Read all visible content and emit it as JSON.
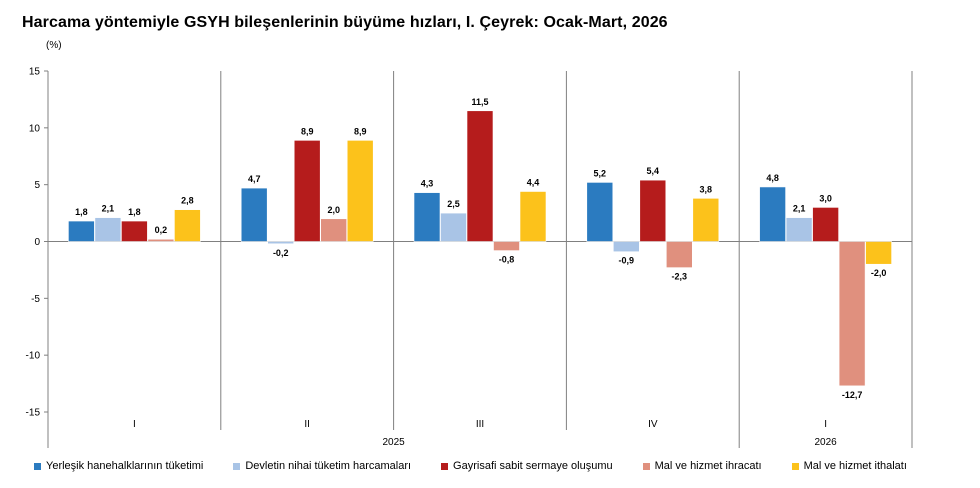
{
  "title": "Harcama yöntemiyle GSYH bileşenlerinin büyüme hızları, I. Çeyrek: Ocak-Mart, 2026",
  "unit_label": "(%)",
  "chart_data": {
    "type": "bar",
    "title": "Harcama yöntemiyle GSYH bileşenlerinin büyüme hızları, I. Çeyrek: Ocak-Mart, 2026",
    "ylabel": "(%)",
    "ylim": [
      -15,
      15
    ],
    "yticks": [
      15,
      10,
      5,
      0,
      -5,
      -10,
      -15
    ],
    "grid": false,
    "legend_position": "bottom",
    "categories": [
      "I",
      "II",
      "III",
      "IV",
      "I"
    ],
    "year_groups": [
      {
        "label": "2025",
        "categories": [
          "I",
          "II",
          "III",
          "IV"
        ]
      },
      {
        "label": "2026",
        "categories": [
          "I"
        ]
      }
    ],
    "series": [
      {
        "name": "Yerleşik hanehalklarının tüketimi",
        "color": "#2b7bc0",
        "values": [
          1.8,
          4.7,
          4.3,
          5.2,
          4.8
        ],
        "labels": [
          "1,8",
          "4,7",
          "4,3",
          "5,2",
          "4,8"
        ]
      },
      {
        "name": "Devletin nihai tüketim harcamaları",
        "color": "#a9c4e6",
        "values": [
          2.1,
          -0.2,
          2.5,
          -0.9,
          2.1
        ],
        "labels": [
          "2,1",
          "-0,2",
          "2,5",
          "-0,9",
          "2,1"
        ]
      },
      {
        "name": "Gayrisafi sabit sermaye oluşumu",
        "color": "#b51c1c",
        "values": [
          1.8,
          8.9,
          11.5,
          5.4,
          3.0
        ],
        "labels": [
          "1,8",
          "8,9",
          "11,5",
          "5,4",
          "3,0"
        ]
      },
      {
        "name": "Mal ve hizmet ihracatı",
        "color": "#e0907e",
        "values": [
          0.2,
          2.0,
          -0.8,
          -2.3,
          -12.7
        ],
        "labels": [
          "0,2",
          "2,0",
          "-0,8",
          "-2,3",
          "-12,7"
        ]
      },
      {
        "name": "Mal ve hizmet ithalatı",
        "color": "#fcc21b",
        "values": [
          2.8,
          8.9,
          4.4,
          3.8,
          -2.0
        ],
        "labels": [
          "2,8",
          "8,9",
          "4,4",
          "3,8",
          "-2,0"
        ]
      }
    ]
  }
}
